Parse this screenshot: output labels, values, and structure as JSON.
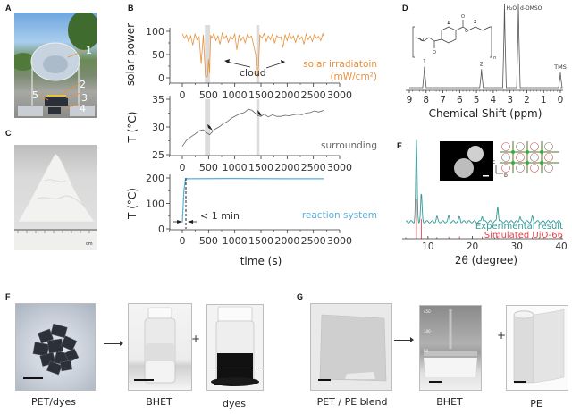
{
  "panels": {
    "A": {
      "label": "A",
      "callouts": [
        "1",
        "2",
        "3",
        "4",
        "5"
      ]
    },
    "B": {
      "label": "B"
    },
    "C": {
      "label": "C",
      "ruler_text": "cm"
    },
    "D": {
      "label": "D"
    },
    "E": {
      "label": "E"
    },
    "F": {
      "label": "F",
      "captions": [
        "PET/dyes",
        "BHET",
        "dyes"
      ],
      "plus": "+"
    },
    "G": {
      "label": "G",
      "captions": [
        "PET / PE blend",
        "BHET",
        "PE"
      ],
      "plus": "+"
    }
  },
  "colors": {
    "solar": "#e8913a",
    "surrounding": "#666666",
    "reaction": "#5bb0d6",
    "experimental": "#2f9a96",
    "simulated": "#e0454e",
    "shade": "#dcdcdc"
  },
  "chart_data": [
    {
      "id": "B-top",
      "type": "line",
      "ylabel": "solar power",
      "yticks": [
        "0",
        "50",
        "100"
      ],
      "ylim": [
        0,
        100
      ],
      "xlim": [
        0,
        3000
      ],
      "xticks": [
        "0",
        "500",
        "1000",
        "1500",
        "2000",
        "2500",
        "3000"
      ],
      "legend": [
        "solar irradiatoin",
        "(mW/cm²)"
      ],
      "annotation": "cloud",
      "shaded_regions": [
        [
          430,
          530
        ],
        [
          1410,
          1470
        ]
      ],
      "series": [
        {
          "name": "solar irradiatoin (mW/cm2)",
          "x": [
            0,
            40,
            80,
            120,
            160,
            200,
            240,
            280,
            320,
            360,
            400,
            440,
            460,
            480,
            500,
            520,
            540,
            560,
            600,
            640,
            680,
            720,
            760,
            800,
            840,
            880,
            920,
            960,
            1000,
            1040,
            1080,
            1120,
            1160,
            1200,
            1240,
            1280,
            1320,
            1360,
            1400,
            1420,
            1440,
            1460,
            1480,
            1520,
            1560,
            1600,
            1640,
            1680,
            1720,
            1760,
            1800,
            1840,
            1880,
            1920,
            1960,
            2000,
            2040,
            2080,
            2120,
            2160,
            2200,
            2240,
            2280,
            2320,
            2360,
            2400,
            2440,
            2480,
            2520,
            2560,
            2600,
            2640,
            2680,
            2700
          ],
          "y": [
            95,
            85,
            92,
            78,
            90,
            70,
            94,
            82,
            88,
            30,
            92,
            5,
            2,
            3,
            40,
            10,
            92,
            85,
            95,
            80,
            90,
            72,
            96,
            84,
            91,
            76,
            89,
            83,
            94,
            60,
            92,
            80,
            88,
            75,
            93,
            86,
            90,
            70,
            50,
            3,
            2,
            45,
            92,
            85,
            95,
            78,
            90,
            82,
            94,
            74,
            91,
            86,
            88,
            65,
            93,
            80,
            95,
            84,
            90,
            76,
            92,
            83,
            88,
            72,
            94,
            82,
            90,
            78,
            93,
            85,
            89,
            80,
            95,
            88
          ]
        }
      ]
    },
    {
      "id": "B-middle",
      "type": "line",
      "ylabel": "T (°C)",
      "yticks": [
        "25",
        "30",
        "35"
      ],
      "ylim": [
        25,
        35
      ],
      "xlim": [
        0,
        3000
      ],
      "xticks": [
        "0",
        "500",
        "1000",
        "1500",
        "2000",
        "2500",
        "3000"
      ],
      "legend": [
        "surrounding"
      ],
      "series": [
        {
          "name": "surrounding",
          "x": [
            0,
            80,
            160,
            240,
            320,
            400,
            460,
            520,
            560,
            620,
            700,
            780,
            860,
            940,
            1020,
            1100,
            1180,
            1260,
            1330,
            1400,
            1450,
            1500,
            1560,
            1640,
            1720,
            1800,
            1880,
            1960,
            2040,
            2120,
            2200,
            2280,
            2360,
            2440,
            2520,
            2600,
            2700
          ],
          "y": [
            26.5,
            27.6,
            28.2,
            28.7,
            29.3,
            29.5,
            29.0,
            28.6,
            29.0,
            29.6,
            30.0,
            30.6,
            31.0,
            31.6,
            32.0,
            32.4,
            32.6,
            33.2,
            33.0,
            32.4,
            32.0,
            31.9,
            32.3,
            31.8,
            32.2,
            31.9,
            31.9,
            32.1,
            32.0,
            32.2,
            32.3,
            32.2,
            32.5,
            32.6,
            32.9,
            32.7,
            33.0
          ]
        }
      ]
    },
    {
      "id": "B-bottom",
      "type": "line",
      "ylabel": "T (°C)",
      "xlabel": "time (s)",
      "yticks": [
        "0",
        "100",
        "200"
      ],
      "ylim": [
        0,
        200
      ],
      "xlim": [
        0,
        3000
      ],
      "xticks": [
        "0",
        "500",
        "1000",
        "1500",
        "2000",
        "2500",
        "3000"
      ],
      "legend": [
        "reaction system"
      ],
      "annotation": "< 1 min",
      "series": [
        {
          "name": "reaction system",
          "x": [
            0,
            30,
            60,
            100,
            1000,
            2000,
            2700
          ],
          "y": [
            25,
            150,
            196,
            197,
            198,
            197,
            197
          ]
        }
      ]
    },
    {
      "id": "D",
      "type": "line",
      "xlabel": "Chemical Shift (ppm)",
      "xlim": [
        9,
        0
      ],
      "xticks": [
        "9",
        "8",
        "7",
        "6",
        "5",
        "4",
        "3",
        "2",
        "1",
        "0"
      ],
      "peaks": [
        {
          "shift": 8.1,
          "label": "1",
          "height": 0.25
        },
        {
          "shift": 4.7,
          "label": "2",
          "height": 0.22
        },
        {
          "shift": 3.33,
          "label": "H₂O",
          "height": 1.0
        },
        {
          "shift": 2.5,
          "label": "d-DMSO",
          "height": 1.0
        },
        {
          "shift": 0.0,
          "label": "TMS",
          "height": 0.18
        }
      ],
      "structure_labels": [
        "1",
        "2",
        "n",
        "O"
      ]
    },
    {
      "id": "E",
      "type": "line",
      "xlabel": "2θ (degree)",
      "xlim": [
        5,
        40
      ],
      "xticks": [
        "10",
        "20",
        "30",
        "40"
      ],
      "legend": [
        "Experimental result",
        "Simulated UiO-66"
      ],
      "axis_labels_inset": [
        "c",
        "b"
      ],
      "series": [
        {
          "name": "Experimental result",
          "peaks": [
            [
              7.4,
              1.0
            ],
            [
              8.5,
              0.35
            ],
            [
              12.0,
              0.06
            ],
            [
              14.7,
              0.07
            ],
            [
              17.1,
              0.06
            ],
            [
              22.2,
              0.08
            ],
            [
              25.7,
              0.2
            ],
            [
              30.7,
              0.07
            ],
            [
              33.5,
              0.06
            ]
          ]
        },
        {
          "name": "Simulated UiO-66",
          "peaks": [
            [
              7.4,
              1.0
            ],
            [
              8.5,
              0.5
            ],
            [
              12.0,
              0.04
            ],
            [
              14.7,
              0.05
            ],
            [
              17.1,
              0.06
            ],
            [
              22.2,
              0.05
            ],
            [
              25.7,
              0.07
            ],
            [
              30.7,
              0.05
            ],
            [
              33.5,
              0.05
            ],
            [
              36.0,
              0.05
            ]
          ]
        }
      ]
    }
  ]
}
